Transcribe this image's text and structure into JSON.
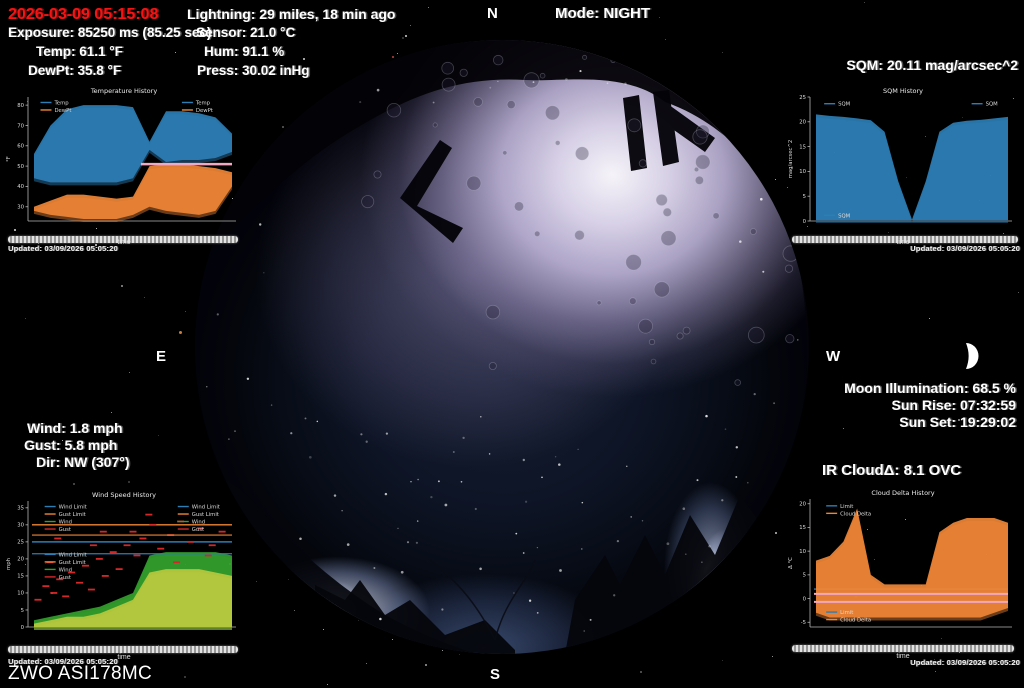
{
  "topbar": {
    "datetime": "2026-03-09 05:15:08",
    "exposure": "Exposure: 85250 ms (85.25 sec)",
    "temp": "Temp: 61.1 °F",
    "dewpt": "DewPt: 35.8 °F",
    "lightning": "Lightning: 29 miles, 18 min ago",
    "sensor": "Sensor: 21.0 °C",
    "hum": "Hum: 91.1 %",
    "press": "Press: 30.02 inHg",
    "mode": "Mode: NIGHT",
    "sqm": "SQM: 20.11 mag/arcsec^2"
  },
  "compass": {
    "n": "N",
    "e": "E",
    "s": "S",
    "w": "W"
  },
  "astro": {
    "moon_illumination": "Moon Illumination: 68.5 %",
    "sun_rise": "Sun Rise: 07:32:59",
    "sun_set": "Sun Set: 19:29:02",
    "ir_cloud": "IR CloudΔ: 8.1 OVC",
    "moon_icon": "waxing-gibbous-moon"
  },
  "wind_panel": {
    "wind": "Wind: 1.8 mph",
    "gust": "Gust: 5.8 mph",
    "dir": "Dir: NW (307°)"
  },
  "camera": "ZWO ASI178MC",
  "colors": {
    "accent_red": "#f51414",
    "blue": "#2d7eb5",
    "orange": "#ef8536",
    "green": "#33a02c",
    "red": "#d62728",
    "pink": "#f2a7c3"
  },
  "chart_data": [
    {
      "type": "area",
      "title": "Temperature History",
      "xlabel": "time",
      "ylabel": "°F",
      "ylim": [
        23,
        84
      ],
      "yticks": [
        30,
        40,
        50,
        60,
        70,
        80
      ],
      "series": [
        {
          "name": "Temp",
          "color": "#2d7eb5",
          "type": "band",
          "upper": [
            56,
            70,
            78,
            80,
            80,
            80,
            79,
            62,
            77,
            77,
            76,
            74,
            66
          ],
          "lower": [
            44,
            42,
            42,
            42,
            42,
            42,
            44,
            58,
            52,
            53,
            53,
            54,
            57
          ]
        },
        {
          "name": "DewPt",
          "color": "#ef8536",
          "type": "band",
          "upper": [
            30,
            33,
            36,
            36,
            35,
            34,
            35,
            50,
            51,
            51,
            50,
            49,
            47
          ],
          "lower": [
            28,
            26,
            25,
            24,
            24,
            24,
            26,
            30,
            28,
            27,
            26,
            28,
            40
          ]
        },
        {
          "name": "",
          "color": "#f2a7c3",
          "type": "hline",
          "y": 51,
          "width": 2.5,
          "x0": 0.55
        }
      ],
      "legend_positions": [
        [
          0.06,
          0.02
        ],
        [
          0.74,
          0.02
        ]
      ],
      "updated": "Updated: 03/09/2026 05:05:20"
    },
    {
      "type": "area",
      "title": "SQM History",
      "xlabel": "time",
      "ylabel": "mag/arcsec^2",
      "ylim": [
        0,
        25
      ],
      "yticks": [
        0,
        5,
        10,
        15,
        20,
        25
      ],
      "series": [
        {
          "name": "SQM",
          "color": "#2d7eb5",
          "type": "band",
          "upper": [
            21.5,
            21.2,
            21,
            20.7,
            20.3,
            18,
            8,
            0.3,
            8,
            18,
            19.8,
            20.2,
            20.4,
            20.7,
            21
          ],
          "lower": [
            0.2,
            0.2,
            0.2,
            0.2,
            0.2,
            0.2,
            0.2,
            0.2,
            0.2,
            0.2,
            0.2,
            0.2,
            0.2,
            0.2,
            0.2
          ]
        }
      ],
      "legend_positions": [
        [
          0.07,
          0.03
        ],
        [
          0.8,
          0.03
        ],
        [
          0.07,
          0.93
        ]
      ],
      "updated": "Updated: 03/09/2026 05:05:20"
    },
    {
      "type": "mixed",
      "title": "Wind Speed History",
      "xlabel": "time",
      "ylabel": "mph",
      "ylim": [
        0,
        37
      ],
      "yticks": [
        0,
        5,
        10,
        15,
        20,
        25,
        30,
        35
      ],
      "series": [
        {
          "name": "Wind Limit",
          "color": "#2d7eb5",
          "type": "hline",
          "y": 25,
          "width": 1.4
        },
        {
          "name": "Gust Limit",
          "color": "#ef8536",
          "type": "hline",
          "y": 30,
          "width": 1.4
        },
        {
          "name": "Wind",
          "color": "#33a02c",
          "type": "band",
          "upper": [
            2,
            3,
            4,
            5,
            6,
            8,
            10,
            21,
            22,
            22,
            22,
            22,
            21
          ],
          "lower": [
            0,
            0,
            0,
            0,
            0,
            0,
            0,
            0,
            0,
            0,
            0,
            0,
            0
          ]
        },
        {
          "name": "",
          "color": "#b8c93e",
          "type": "band",
          "upper": [
            1,
            2,
            3,
            3,
            4,
            6,
            8,
            16,
            17,
            17,
            17,
            16,
            15
          ],
          "lower": [
            0,
            0,
            0,
            0,
            0,
            0,
            0,
            0,
            0,
            0,
            0,
            0,
            0
          ]
        },
        {
          "name": "Gust",
          "color": "#d62728",
          "type": "scatter",
          "points": [
            [
              0.02,
              8
            ],
            [
              0.06,
              12
            ],
            [
              0.1,
              10
            ],
            [
              0.13,
              14
            ],
            [
              0.16,
              9
            ],
            [
              0.19,
              16
            ],
            [
              0.23,
              13
            ],
            [
              0.26,
              18
            ],
            [
              0.29,
              11
            ],
            [
              0.33,
              20
            ],
            [
              0.36,
              15
            ],
            [
              0.4,
              22
            ],
            [
              0.43,
              17
            ],
            [
              0.47,
              24
            ],
            [
              0.5,
              28
            ],
            [
              0.55,
              26
            ],
            [
              0.6,
              30
            ],
            [
              0.64,
              23
            ],
            [
              0.69,
              27
            ],
            [
              0.74,
              31
            ],
            [
              0.79,
              25
            ],
            [
              0.84,
              29
            ],
            [
              0.9,
              24
            ],
            [
              0.95,
              28
            ],
            [
              0.08,
              19
            ],
            [
              0.3,
              24
            ],
            [
              0.52,
              21
            ],
            [
              0.72,
              19
            ],
            [
              0.88,
              21
            ],
            [
              0.12,
              26
            ],
            [
              0.35,
              28
            ],
            [
              0.58,
              33
            ]
          ]
        },
        {
          "name": "",
          "color": "#2d7eb5",
          "type": "hline",
          "y": 21.5,
          "width": 1.2
        },
        {
          "name": "",
          "color": "#ef8536",
          "type": "hline",
          "y": 27,
          "width": 1.2
        }
      ],
      "legend_positions": [
        [
          0.08,
          0.02
        ],
        [
          0.08,
          0.4
        ],
        [
          0.72,
          0.02
        ]
      ],
      "updated": "Updated: 03/09/2026 05:05:20"
    },
    {
      "type": "area",
      "title": "Cloud Delta History",
      "xlabel": "time",
      "ylabel": "Δ °C",
      "ylim": [
        -6,
        21
      ],
      "yticks": [
        -5,
        0,
        5,
        10,
        15,
        20
      ],
      "series": [
        {
          "name": "Limit",
          "color": "#2d7eb5",
          "type": "hline",
          "y": 2,
          "width": 1.4
        },
        {
          "name": "Cloud Delta",
          "color": "#ef8536",
          "type": "band",
          "upper": [
            8,
            9,
            12,
            19,
            5,
            3,
            3,
            3,
            3,
            14,
            16,
            17,
            17,
            17,
            16
          ],
          "lower": [
            -3,
            -4,
            -4,
            -4,
            -4,
            -4,
            -4,
            -4,
            -4,
            -4,
            -4,
            -4,
            -4,
            -3,
            -2
          ]
        },
        {
          "name": "",
          "color": "#f2a7c3",
          "type": "hline",
          "y": 1,
          "width": 2
        },
        {
          "name": "",
          "color": "#f2a7c3",
          "type": "hline",
          "y": -0.7,
          "width": 2
        }
      ],
      "legend_positions": [
        [
          0.08,
          0.03
        ],
        [
          0.08,
          0.86
        ]
      ],
      "updated": "Updated: 03/09/2026 05:05:20"
    }
  ]
}
